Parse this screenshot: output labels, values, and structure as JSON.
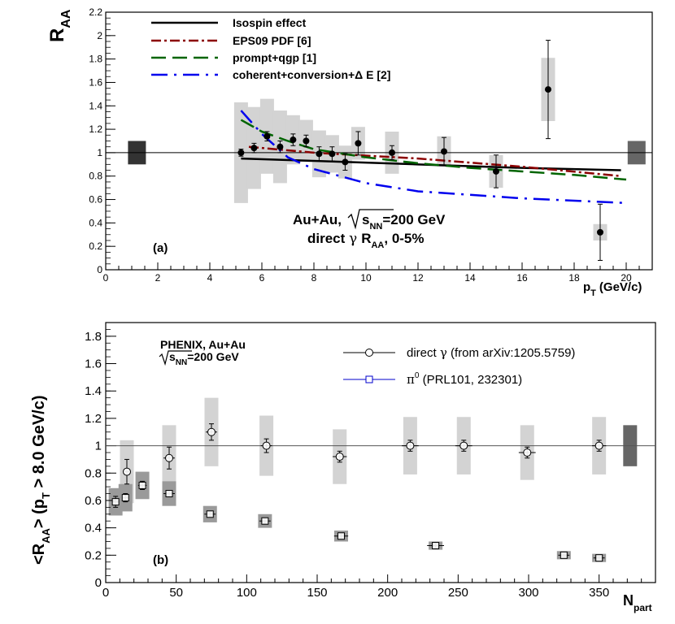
{
  "chart_data": [
    {
      "type": "scatter",
      "panel_label": "(a)",
      "ylabel": "R",
      "ylabel_sub": "AA",
      "xlabel": "p",
      "xlabel_sub": "T",
      "xlabel_units": "(GeV/c)",
      "xlim": [
        0,
        21
      ],
      "ylim": [
        0,
        2.2
      ],
      "xticks": [
        0,
        2,
        4,
        6,
        8,
        10,
        12,
        14,
        16,
        18,
        20
      ],
      "yticks": [
        0,
        0.2,
        0.4,
        0.6,
        0.8,
        1,
        1.2,
        1.4,
        1.6,
        1.8,
        2,
        2.2
      ],
      "ytick_labels": [
        "0",
        "0.2",
        "0.4",
        "0.6",
        "0.8",
        "1",
        "1.2",
        "1.4",
        "1.6",
        "1.8",
        "2",
        "2.2"
      ],
      "reference_line": 1,
      "annotation_line1": "Au+Au, ",
      "annotation_sqrt_s": "s",
      "annotation_sqrt_sub": "NN",
      "annotation_energy": "=200 GeV",
      "annotation_line2_prefix": "direct ",
      "annotation_gamma": "γ",
      "annotation_R": "R",
      "annotation_R_sub": "AA",
      "annotation_centrality": ", 0-5%",
      "legend": [
        {
          "label": "Isospin effect",
          "color": "#000000",
          "dash": "solid"
        },
        {
          "label": "EPS09 PDF [6]",
          "color": "#8b0000",
          "dash": "dashdot"
        },
        {
          "label": "prompt+qgp [1]",
          "color": "#006400",
          "dash": "longdash"
        },
        {
          "label": "coherent+conversion+Δ E [2]",
          "color": "#0000ee",
          "dash": "dashdot2"
        }
      ],
      "series": [
        {
          "name": "direct photon RAA 0-5%",
          "x": [
            5.2,
            5.7,
            6.2,
            6.7,
            7.2,
            7.7,
            8.2,
            8.7,
            9.2,
            9.7,
            11.0,
            13.0,
            15.0,
            17.0,
            19.0
          ],
          "y": [
            1.0,
            1.04,
            1.14,
            1.05,
            1.11,
            1.1,
            0.99,
            0.99,
            0.92,
            1.08,
            1.0,
            1.01,
            0.84,
            1.54,
            0.32
          ],
          "stat_err": [
            0.03,
            0.04,
            0.04,
            0.05,
            0.05,
            0.05,
            0.06,
            0.06,
            0.07,
            0.1,
            0.06,
            0.12,
            0.14,
            0.42,
            0.24
          ],
          "sys_err": [
            0.43,
            0.35,
            0.32,
            0.31,
            0.21,
            0.18,
            0.2,
            0.16,
            0.14,
            0.14,
            0.18,
            0.13,
            0.14,
            0.27,
            0.07
          ]
        }
      ],
      "theory_curves": [
        {
          "name": "Isospin effect",
          "x": [
            5.2,
            8,
            12,
            16,
            19.8
          ],
          "y": [
            0.95,
            0.93,
            0.9,
            0.87,
            0.85
          ]
        },
        {
          "name": "EPS09 PDF [6]",
          "x": [
            5.5,
            8,
            12,
            16,
            19.8
          ],
          "y": [
            1.05,
            1.0,
            0.95,
            0.88,
            0.8
          ]
        },
        {
          "name": "prompt+qgp [1]",
          "x": [
            5.2,
            6,
            7,
            8,
            10,
            12,
            14,
            16,
            18,
            20
          ],
          "y": [
            1.28,
            1.18,
            1.1,
            1.03,
            0.96,
            0.91,
            0.87,
            0.84,
            0.81,
            0.77
          ]
        },
        {
          "name": "coherent+conversion+Δ E [2]",
          "x": [
            5.2,
            6,
            7,
            8,
            10,
            12,
            14,
            16,
            18,
            20
          ],
          "y": [
            1.36,
            1.16,
            0.96,
            0.86,
            0.74,
            0.67,
            0.64,
            0.61,
            0.59,
            0.57
          ]
        }
      ],
      "norm_boxes": [
        {
          "x": 1.2,
          "y": 1.0,
          "err": 0.1,
          "color": "#333333"
        },
        {
          "x": 20.4,
          "y": 1.0,
          "err": 0.1,
          "color": "#666666"
        }
      ]
    },
    {
      "type": "scatter",
      "panel_label": "(b)",
      "ylabel": "<R",
      "ylabel_sub1": "AA",
      "ylabel_mid": "> (p",
      "ylabel_sub2": "T",
      "ylabel_end": " > 8.0 GeV/c)",
      "xlabel": "N",
      "xlabel_sub": "part",
      "xlim": [
        0,
        390
      ],
      "ylim": [
        0,
        1.9
      ],
      "xticks": [
        0,
        50,
        100,
        150,
        200,
        250,
        300,
        350
      ],
      "yticks": [
        0,
        0.2,
        0.4,
        0.6,
        0.8,
        1,
        1.2,
        1.4,
        1.6,
        1.8
      ],
      "ytick_labels": [
        "0",
        "0.2",
        "0.4",
        "0.6",
        "0.8",
        "1",
        "1.2",
        "1.4",
        "1.6",
        "1.8"
      ],
      "reference_line": 1,
      "experiment_line1": "PHENIX, Au+Au",
      "experiment_sqrt_s": "s",
      "experiment_sqrt_sub": "NN",
      "experiment_energy": "=200 GeV",
      "legend": [
        {
          "label_prefix": "direct ",
          "label_gamma": "γ",
          "label_suffix": " (from arXiv:1205.5759)",
          "marker": "circle",
          "color": "#000000"
        },
        {
          "label_prefix": "π",
          "label_sup": "0",
          "label_suffix": " (PRL101, 232301)",
          "marker": "square",
          "color": "#0000cc"
        }
      ],
      "series": [
        {
          "name": "direct photon",
          "marker": "circle",
          "x": [
            15,
            45,
            75,
            114,
            166,
            216,
            254,
            299,
            350
          ],
          "y": [
            0.81,
            0.91,
            1.1,
            1.0,
            0.92,
            1.0,
            1.0,
            0.95,
            1.0
          ],
          "stat_err": [
            0.09,
            0.08,
            0.06,
            0.05,
            0.04,
            0.04,
            0.04,
            0.04,
            0.04
          ],
          "sys_err": [
            0.23,
            0.24,
            0.25,
            0.22,
            0.2,
            0.21,
            0.21,
            0.2,
            0.21
          ],
          "x_err": [
            2,
            4,
            4,
            4,
            5,
            6,
            6,
            6,
            5
          ]
        },
        {
          "name": "pi0",
          "marker": "square",
          "x": [
            7,
            14,
            26,
            45,
            74,
            113,
            167,
            234,
            325,
            350
          ],
          "y": [
            0.59,
            0.62,
            0.71,
            0.65,
            0.5,
            0.45,
            0.34,
            0.27,
            0.2,
            0.18
          ],
          "stat_err": [
            0.04,
            0.03,
            0.03,
            0.02,
            0.02,
            0.02,
            0.02,
            0.02,
            0.01,
            0.01
          ],
          "sys_err": [
            0.1,
            0.1,
            0.1,
            0.09,
            0.06,
            0.05,
            0.04,
            0.03,
            0.03,
            0.03
          ],
          "x_err": [
            2,
            2,
            3,
            4,
            4,
            4,
            5,
            6,
            4,
            4
          ]
        }
      ],
      "norm_boxes": [
        {
          "x": 372,
          "y": 1.0,
          "err": 0.15,
          "color": "#666666"
        }
      ]
    }
  ]
}
